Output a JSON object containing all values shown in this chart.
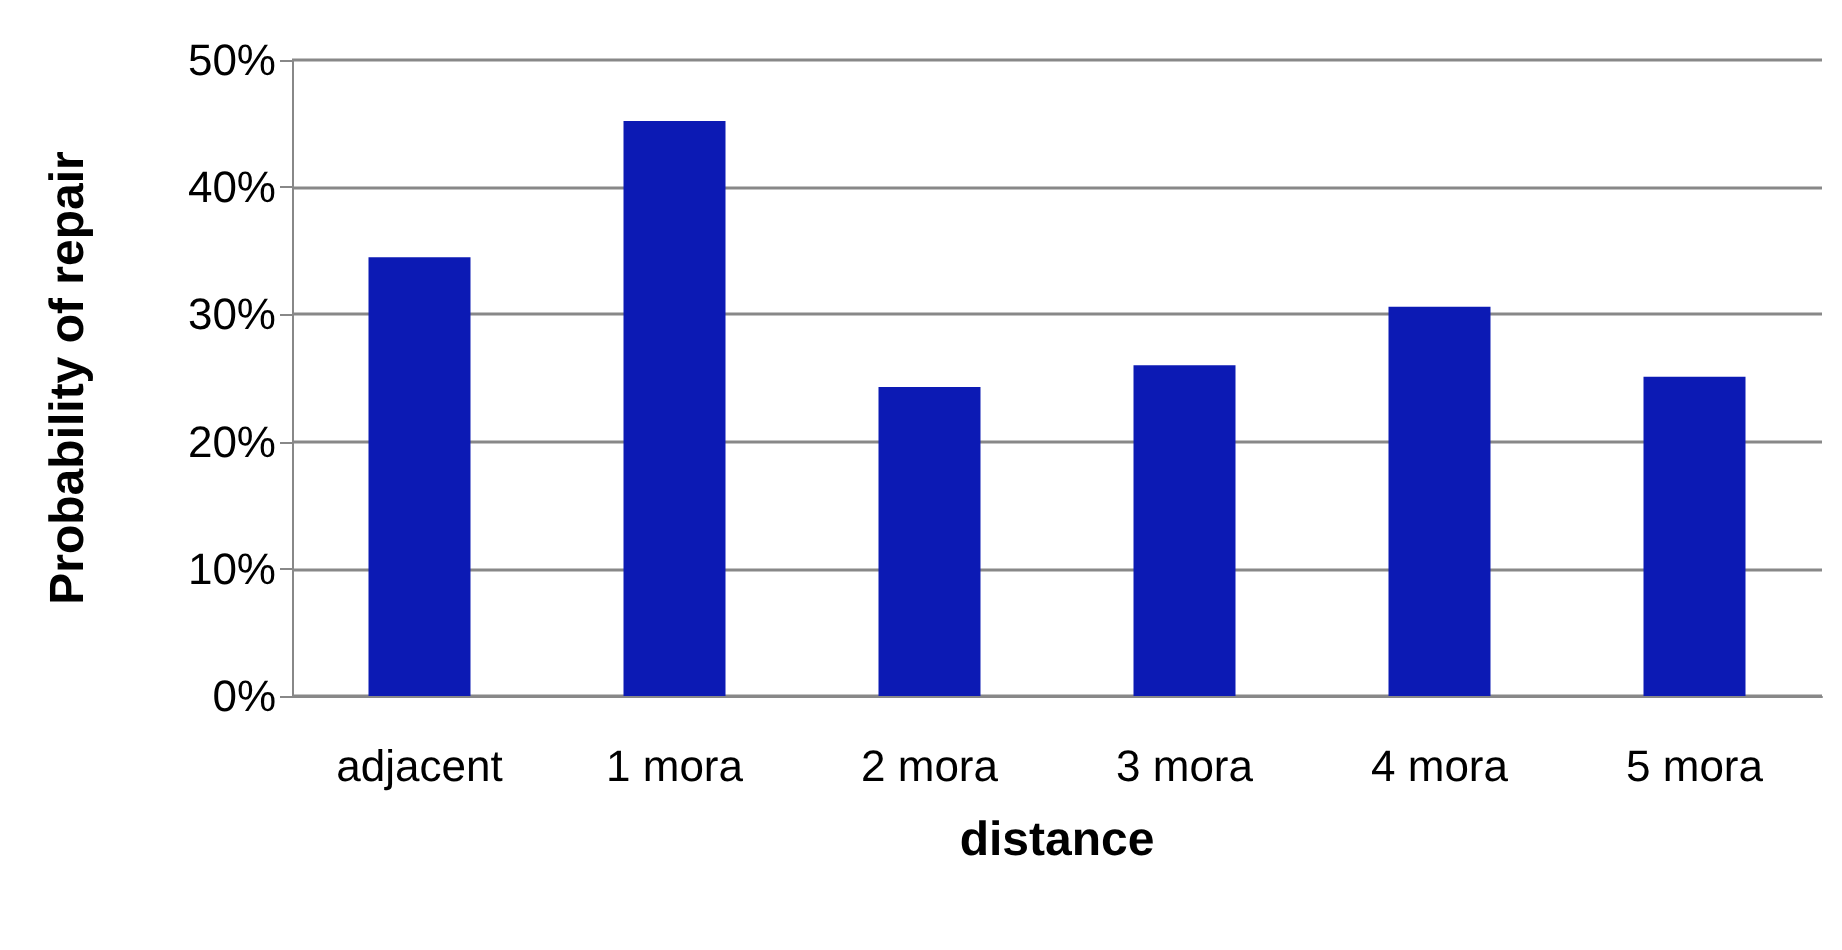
{
  "chart_data": {
    "type": "bar",
    "xlabel": "distance",
    "ylabel": "Probability of repair",
    "categories": [
      "adjacent",
      "1 mora",
      "2 mora",
      "3 mora",
      "4 mora",
      "5 mora"
    ],
    "values": [
      34.5,
      45.2,
      24.3,
      26.0,
      30.6,
      25.1
    ],
    "color": "#0c1ab4",
    "ylim": [
      0,
      50
    ],
    "yticks": [
      {
        "value": 0,
        "label": "0%"
      },
      {
        "value": 10,
        "label": "10%"
      },
      {
        "value": 20,
        "label": "20%"
      },
      {
        "value": 30,
        "label": "30%"
      },
      {
        "value": 40,
        "label": "40%"
      },
      {
        "value": 50,
        "label": "50%"
      }
    ],
    "grid": "y"
  }
}
